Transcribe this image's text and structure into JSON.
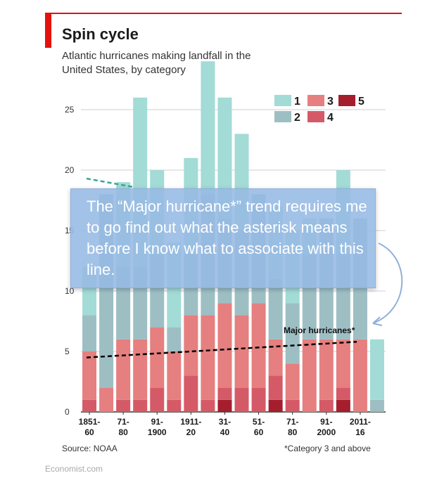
{
  "title": "Spin cycle",
  "subtitle": "Atlantic hurricanes making landfall in the United States, by category",
  "source": "Source: NOAA",
  "footnote": "*Category 3 and above",
  "brand": "Economist.com",
  "annotation": {
    "text": "The “Major hurricane*” trend requires me to go find out what the asterisk means before I know what to associate with this line."
  },
  "colors": {
    "cat1": "#a3dbd6",
    "cat2": "#9dbfc4",
    "cat3": "#e67f7f",
    "cat4": "#d55a67",
    "cat5": "#a51e2e",
    "accent": "#e3120b",
    "trend": "#000000",
    "callout": "#96b9e4"
  },
  "chart_data": {
    "type": "bar",
    "stacked": true,
    "x_tick_labels": [
      {
        "top": "1851-",
        "bottom": "60"
      },
      {
        "top": "71-",
        "bottom": "80"
      },
      {
        "top": "91-",
        "bottom": "1900"
      },
      {
        "top": "1911-",
        "bottom": "20"
      },
      {
        "top": "31-",
        "bottom": "40"
      },
      {
        "top": "51-",
        "bottom": "60"
      },
      {
        "top": "71-",
        "bottom": "80"
      },
      {
        "top": "91-",
        "bottom": "2000"
      },
      {
        "top": "2011-",
        "bottom": "16"
      }
    ],
    "y_ticks": [
      0,
      5,
      10,
      15,
      20,
      25
    ],
    "ylim": [
      0,
      27
    ],
    "legend": [
      "1",
      "2",
      "3",
      "4",
      "5"
    ],
    "series": [
      {
        "name": "5",
        "values": [
          0,
          0,
          0,
          0,
          0,
          0,
          0,
          0,
          1,
          0,
          0,
          1,
          0,
          0,
          0,
          1,
          0,
          0
        ]
      },
      {
        "name": "4",
        "values": [
          1,
          0,
          1,
          1,
          2,
          1,
          3,
          1,
          1,
          2,
          2,
          2,
          1,
          0,
          1,
          1,
          0,
          0
        ]
      },
      {
        "name": "3",
        "values": [
          4,
          2,
          5,
          5,
          5,
          4,
          5,
          7,
          7,
          6,
          7,
          3,
          3,
          6,
          5,
          4,
          6,
          0
        ]
      },
      {
        "name": "2",
        "values": [
          3,
          16,
          6,
          6,
          6,
          2,
          5,
          10,
          7,
          7,
          9,
          5,
          5,
          7,
          10,
          7,
          10,
          1
        ]
      },
      {
        "name": "1",
        "values": [
          4,
          0,
          7,
          14,
          7,
          7,
          8,
          11,
          10,
          8,
          0,
          6,
          6,
          3,
          0,
          7,
          0,
          5
        ]
      }
    ],
    "trend": {
      "label": "Major hurricanes*",
      "start": 4.5,
      "end": 5.8
    },
    "old_trend": {
      "start": 19.3,
      "end": 18.6
    }
  }
}
